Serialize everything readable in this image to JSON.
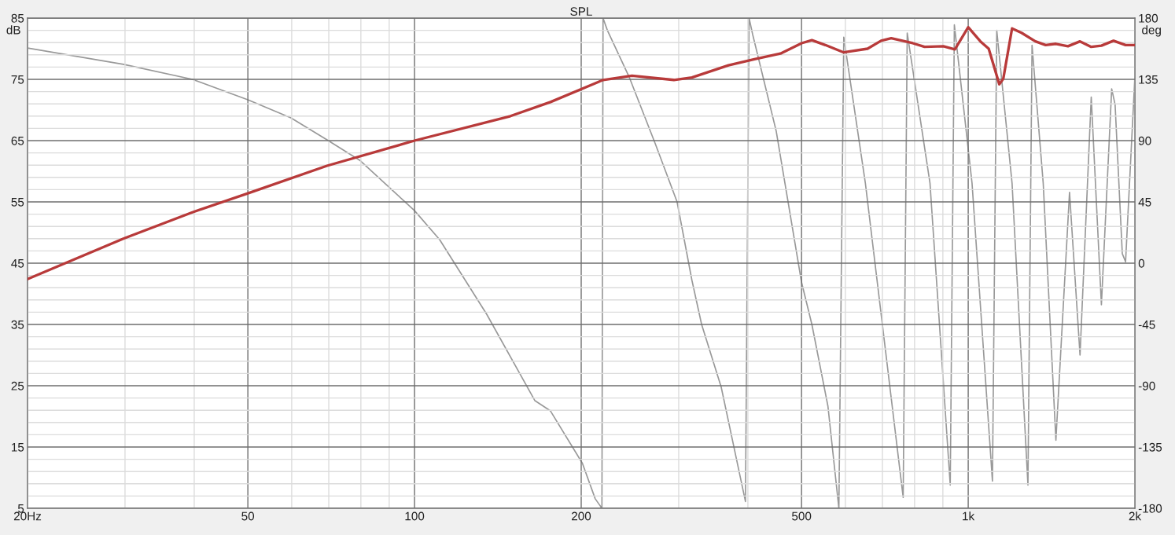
{
  "chart_data": {
    "type": "line",
    "title": "SPL",
    "ylabel": "dB",
    "y2label": "deg",
    "log": "x",
    "grid": true,
    "line_style": "solid",
    "marker": "none",
    "xlim": [
      20,
      2000
    ],
    "xticks": [
      {
        "value": 20,
        "label": "20Hz"
      },
      {
        "value": 30,
        "label": null
      },
      {
        "value": 40,
        "label": null
      },
      50,
      {
        "value": 60,
        "label": null
      },
      {
        "value": 70,
        "label": null
      },
      {
        "value": 80,
        "label": null
      },
      {
        "value": 90,
        "label": null
      },
      100,
      200,
      {
        "value": 300,
        "label": null
      },
      {
        "value": 400,
        "label": null
      },
      500,
      {
        "value": 600,
        "label": null
      },
      {
        "value": 700,
        "label": null
      },
      {
        "value": 800,
        "label": null
      },
      {
        "value": 900,
        "label": null
      },
      {
        "value": 1000,
        "label": "1k"
      },
      {
        "value": 2000,
        "label": "2k"
      }
    ],
    "ylim": [
      5,
      85
    ],
    "yticks": [
      5,
      {
        "value": 7,
        "label": null
      },
      {
        "value": 9,
        "label": null
      },
      {
        "value": 11,
        "label": null
      },
      {
        "value": 13,
        "label": null
      },
      15,
      {
        "value": 17,
        "label": null
      },
      {
        "value": 19,
        "label": null
      },
      {
        "value": 21,
        "label": null
      },
      {
        "value": 23,
        "label": null
      },
      25,
      {
        "value": 27,
        "label": null
      },
      {
        "value": 29,
        "label": null
      },
      {
        "value": 31,
        "label": null
      },
      {
        "value": 33,
        "label": null
      },
      35,
      {
        "value": 37,
        "label": null
      },
      {
        "value": 39,
        "label": null
      },
      {
        "value": 41,
        "label": null
      },
      {
        "value": 43,
        "label": null
      },
      45,
      {
        "value": 47,
        "label": null
      },
      {
        "value": 49,
        "label": null
      },
      {
        "value": 51,
        "label": null
      },
      {
        "value": 53,
        "label": null
      },
      55,
      {
        "value": 57,
        "label": null
      },
      {
        "value": 59,
        "label": null
      },
      {
        "value": 61,
        "label": null
      },
      {
        "value": 63,
        "label": null
      },
      65,
      {
        "value": 67,
        "label": null
      },
      {
        "value": 69,
        "label": null
      },
      {
        "value": 71,
        "label": null
      },
      {
        "value": 73,
        "label": null
      },
      75,
      {
        "value": 77,
        "label": null
      },
      {
        "value": 79,
        "label": null
      },
      {
        "value": 81,
        "label": null
      },
      {
        "value": 83,
        "label": null
      },
      85
    ],
    "y2lim": [
      -180,
      180
    ],
    "y2ticks": [
      -180,
      -135,
      -90,
      -45,
      0,
      45,
      90,
      135,
      180
    ],
    "series": [
      {
        "color": "#999999",
        "axis": "y2",
        "x": [
          20,
          29.8,
          39.7,
          50,
          59.8,
          69.5,
          79.6,
          100,
          111,
          135,
          165,
          176,
          201,
          212,
          218,
          219,
          223,
          244,
          272,
          298,
          317,
          330,
          358,
          396,
          402,
          408,
          450,
          500,
          522,
          558,
          584,
          596,
          652,
          763,
          776,
          853,
          928,
          944,
          1016,
          1106,
          1126,
          1200,
          1282,
          1304,
          1366,
          1440,
          1524,
          1592,
          1668,
          1740,
          1816,
          1842,
          1898,
          1924,
          2000
        ],
        "values": [
          158,
          146,
          135,
          120,
          106.7,
          90.6,
          75.6,
          38.6,
          17.3,
          -37.5,
          -101,
          -108.5,
          -147,
          -173,
          -180,
          180,
          171,
          137,
          88,
          45,
          -12.7,
          -45,
          -91,
          -175,
          180,
          168,
          97,
          -14,
          -45,
          -105,
          -180,
          166,
          58.8,
          -172,
          169,
          58.8,
          -163,
          175,
          58.8,
          -160,
          171,
          58.8,
          -163,
          160,
          58.8,
          -130,
          52,
          -67.5,
          122,
          -30.6,
          128,
          116.5,
          7,
          1,
          137
        ]
      },
      {
        "color": "#b83a3a",
        "x": [
          20,
          29.8,
          39.7,
          50,
          69.5,
          100,
          149,
          176,
          219,
          247,
          294,
          317,
          369,
          411,
          458,
          500,
          522,
          552,
          596,
          658,
          696,
          726,
          794,
          834,
          902,
          946,
          1000,
          1052,
          1089,
          1138,
          1157,
          1200,
          1248,
          1322,
          1380,
          1440,
          1514,
          1592,
          1668,
          1740,
          1830,
          1924,
          2000
        ],
        "values": [
          42.4,
          49.0,
          53.3,
          56.4,
          60.9,
          65.0,
          69.0,
          71.3,
          74.9,
          75.6,
          74.9,
          75.3,
          77.3,
          78.3,
          79.2,
          80.9,
          81.4,
          80.6,
          79.4,
          80.0,
          81.3,
          81.7,
          80.9,
          80.3,
          80.4,
          79.9,
          83.5,
          81.2,
          80.0,
          74.2,
          75.1,
          83.3,
          82.6,
          81.2,
          80.6,
          80.8,
          80.4,
          81.2,
          80.3,
          80.5,
          81.3,
          80.6,
          80.6
        ]
      }
    ]
  }
}
